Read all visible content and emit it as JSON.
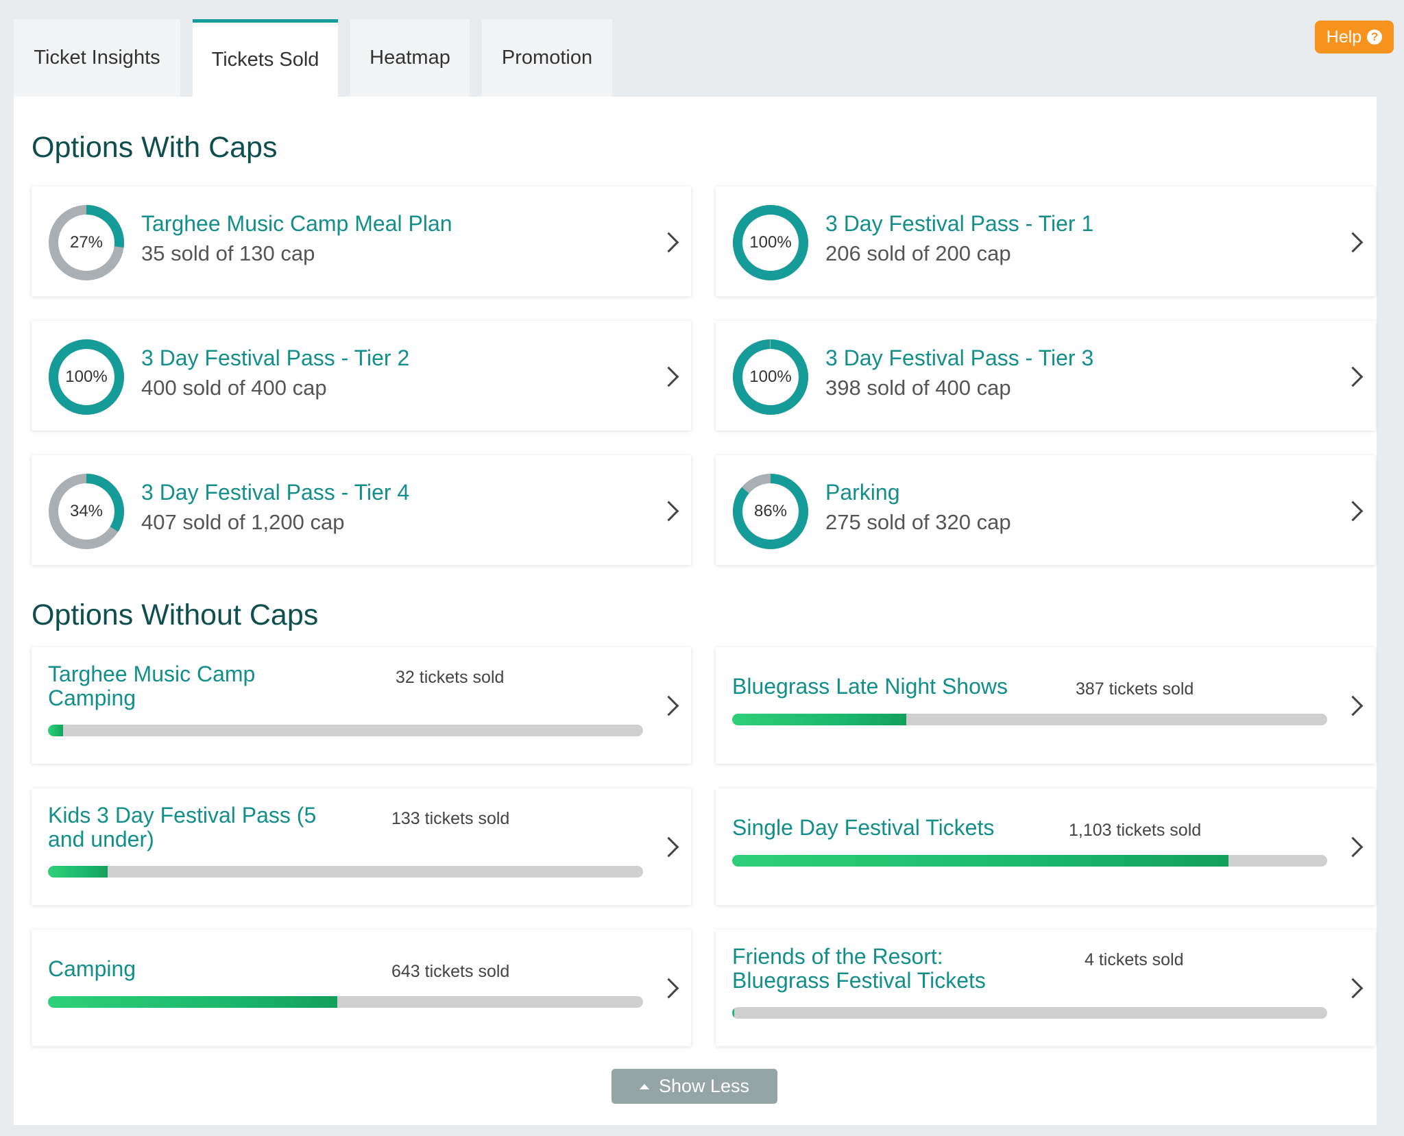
{
  "tabs": [
    {
      "label": "Ticket Insights"
    },
    {
      "label": "Tickets Sold"
    },
    {
      "label": "Heatmap"
    },
    {
      "label": "Promotion"
    }
  ],
  "active_tab": "Tickets Sold",
  "help": {
    "label": "Help",
    "icon": "question-circle-icon"
  },
  "capped": {
    "title": "Options With Caps",
    "items": [
      {
        "name": "Targhee Music Camp Meal Plan",
        "sub": "35 sold of 130 cap",
        "pct_label": "27%",
        "fraction": 0.27
      },
      {
        "name": "3 Day Festival Pass - Tier 1",
        "sub": "206 sold of 200 cap",
        "pct_label": "100%",
        "fraction": 1.0
      },
      {
        "name": "3 Day Festival Pass - Tier 2",
        "sub": "400 sold of 400 cap",
        "pct_label": "100%",
        "fraction": 1.0
      },
      {
        "name": "3 Day Festival Pass - Tier 3",
        "sub": "398 sold of 400 cap",
        "pct_label": "100%",
        "fraction": 0.995
      },
      {
        "name": "3 Day Festival Pass - Tier 4",
        "sub": "407 sold of 1,200 cap",
        "pct_label": "34%",
        "fraction": 0.34
      },
      {
        "name": "Parking",
        "sub": "275 sold of 320 cap",
        "pct_label": "86%",
        "fraction": 0.86
      }
    ]
  },
  "uncapped": {
    "title": "Options Without Caps",
    "items": [
      {
        "name": "Targhee Music Camp Camping",
        "count": "32 tickets sold",
        "fraction": 0.025
      },
      {
        "name": "Bluegrass Late Night Shows",
        "count": "387 tickets sold",
        "fraction": 0.293
      },
      {
        "name": "Kids 3 Day Festival Pass (5 and under)",
        "count": "133 tickets sold",
        "fraction": 0.1
      },
      {
        "name": "Single Day Festival Tickets",
        "count": "1,103 tickets sold",
        "fraction": 0.834
      },
      {
        "name": "Camping",
        "count": "643 tickets sold",
        "fraction": 0.486
      },
      {
        "name": "Friends of the Resort: Bluegrass Festival Tickets",
        "count": "4 tickets sold",
        "fraction": 0.004
      }
    ]
  },
  "show_less": {
    "label": "Show Less",
    "icon": "caret-up-icon"
  },
  "colors": {
    "teal": "#159c98",
    "grey": "#a9afb2",
    "orange": "#f7931d",
    "green": "#26c472"
  }
}
